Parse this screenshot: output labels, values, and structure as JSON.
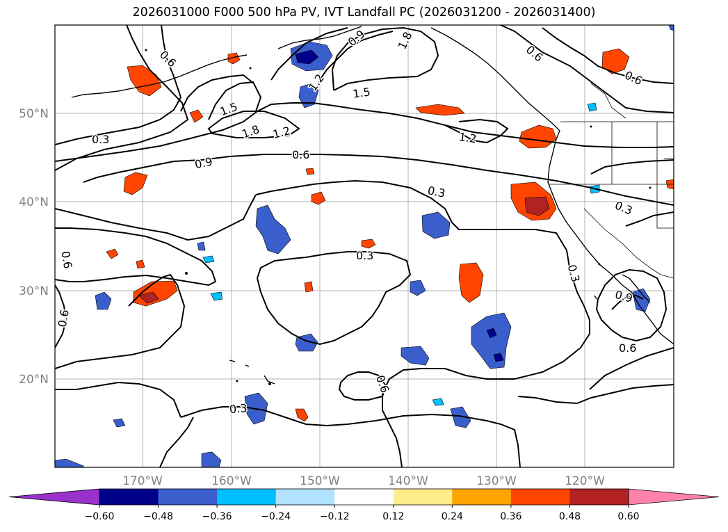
{
  "title": "2026031000 F000 500 hPa PV, IVT Landfall PC (2026031200 - 2026031400)",
  "latitude_labels": [
    "50°N",
    "40°N",
    "30°N",
    "20°N"
  ],
  "longitude_labels": [
    "170°W",
    "160°W",
    "150°W",
    "140°W",
    "130°W",
    "120°W"
  ],
  "contour_labels": [
    "0.6",
    "0.9",
    "1.8",
    "0.6",
    "0.6",
    "1.2",
    "1.5",
    "0.3",
    "1.5",
    "1.8",
    "1.2",
    "0.9",
    "0.6",
    "1.2",
    "0.3",
    "0.3",
    "0.6",
    "0.3",
    "0.3",
    "0.9",
    "0.6",
    "0.6",
    "0.6",
    "0.3"
  ],
  "colorbar": {
    "ticks": [
      "−0.60",
      "−0.48",
      "−0.36",
      "−0.24",
      "−0.12",
      "0.12",
      "0.24",
      "0.36",
      "0.48",
      "0.60"
    ],
    "colors": [
      "#9932cc",
      "#00008b",
      "#3a5fcd",
      "#00bfff",
      "#b0e2ff",
      "#ffffff",
      "#ffec8b",
      "#ffa500",
      "#ff4500",
      "#b22222",
      "#ff82ab"
    ]
  }
}
